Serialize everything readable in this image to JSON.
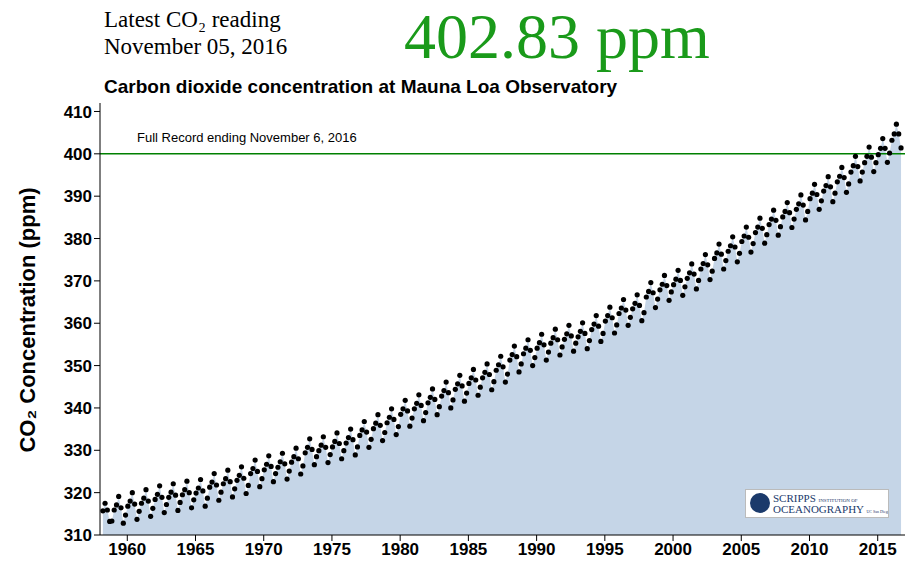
{
  "header": {
    "line1": "Latest CO₂ reading",
    "line2": "November 05, 2016",
    "reading": "402.83 ppm",
    "reading_color": "#1a9a1a"
  },
  "logo": {
    "line1": "SCRIPPS",
    "line2": "INSTITUTION OF",
    "line3": "OCEANOGRAPHY",
    "line4": "UC San Diego"
  },
  "chart_data": {
    "type": "scatter",
    "title": "Carbon dioxide concentration at Mauna Loa Observatory",
    "y_label": "CO₂ Concentration (ppm)",
    "xlim": [
      1958,
      2017
    ],
    "xticks": [
      1960,
      1965,
      1970,
      1975,
      1980,
      1985,
      1990,
      1995,
      2000,
      2005,
      2010,
      2015
    ],
    "ylim": [
      310,
      412
    ],
    "yticks": [
      310,
      320,
      330,
      340,
      350,
      360,
      370,
      380,
      390,
      400,
      410
    ],
    "reference_line": {
      "y": 400,
      "label": "Full Record ending November 6, 2016",
      "color": "#008000"
    },
    "marker": "circle",
    "x": [
      1958.21,
      1958.37,
      1958.54,
      1958.71,
      1958.87,
      1959.04,
      1959.21,
      1959.37,
      1959.54,
      1959.71,
      1959.87,
      1960.04,
      1960.21,
      1960.37,
      1960.54,
      1960.71,
      1960.87,
      1961.04,
      1961.21,
      1961.37,
      1961.54,
      1961.71,
      1961.87,
      1962.04,
      1962.21,
      1962.37,
      1962.54,
      1962.71,
      1962.87,
      1963.04,
      1963.21,
      1963.37,
      1963.54,
      1963.71,
      1963.87,
      1964.04,
      1964.21,
      1964.37,
      1964.54,
      1964.71,
      1964.87,
      1965.04,
      1965.21,
      1965.37,
      1965.54,
      1965.71,
      1965.87,
      1966.04,
      1966.21,
      1966.37,
      1966.54,
      1966.71,
      1966.87,
      1967.04,
      1967.21,
      1967.37,
      1967.54,
      1967.71,
      1967.87,
      1968.04,
      1968.21,
      1968.37,
      1968.54,
      1968.71,
      1968.87,
      1969.04,
      1969.21,
      1969.37,
      1969.54,
      1969.71,
      1969.87,
      1970.04,
      1970.21,
      1970.37,
      1970.54,
      1970.71,
      1970.87,
      1971.04,
      1971.21,
      1971.37,
      1971.54,
      1971.71,
      1971.87,
      1972.04,
      1972.21,
      1972.37,
      1972.54,
      1972.71,
      1972.87,
      1973.04,
      1973.21,
      1973.37,
      1973.54,
      1973.71,
      1973.87,
      1974.04,
      1974.21,
      1974.37,
      1974.54,
      1974.71,
      1974.87,
      1975.04,
      1975.21,
      1975.37,
      1975.54,
      1975.71,
      1975.87,
      1976.04,
      1976.21,
      1976.37,
      1976.54,
      1976.71,
      1976.87,
      1977.04,
      1977.21,
      1977.37,
      1977.54,
      1977.71,
      1977.87,
      1978.04,
      1978.21,
      1978.37,
      1978.54,
      1978.71,
      1978.87,
      1979.04,
      1979.21,
      1979.37,
      1979.54,
      1979.71,
      1979.87,
      1980.04,
      1980.21,
      1980.37,
      1980.54,
      1980.71,
      1980.87,
      1981.04,
      1981.21,
      1981.37,
      1981.54,
      1981.71,
      1981.87,
      1982.04,
      1982.21,
      1982.37,
      1982.54,
      1982.71,
      1982.87,
      1983.04,
      1983.21,
      1983.37,
      1983.54,
      1983.71,
      1983.87,
      1984.04,
      1984.21,
      1984.37,
      1984.54,
      1984.71,
      1984.87,
      1985.04,
      1985.21,
      1985.37,
      1985.54,
      1985.71,
      1985.87,
      1986.04,
      1986.21,
      1986.37,
      1986.54,
      1986.71,
      1986.87,
      1987.04,
      1987.21,
      1987.37,
      1987.54,
      1987.71,
      1987.87,
      1988.04,
      1988.21,
      1988.37,
      1988.54,
      1988.71,
      1988.87,
      1989.04,
      1989.21,
      1989.37,
      1989.54,
      1989.71,
      1989.87,
      1990.04,
      1990.21,
      1990.37,
      1990.54,
      1990.71,
      1990.87,
      1991.04,
      1991.21,
      1991.37,
      1991.54,
      1991.71,
      1991.87,
      1992.04,
      1992.21,
      1992.37,
      1992.54,
      1992.71,
      1992.87,
      1993.04,
      1993.21,
      1993.37,
      1993.54,
      1993.71,
      1993.87,
      1994.04,
      1994.21,
      1994.37,
      1994.54,
      1994.71,
      1994.87,
      1995.04,
      1995.21,
      1995.37,
      1995.54,
      1995.71,
      1995.87,
      1996.04,
      1996.21,
      1996.37,
      1996.54,
      1996.71,
      1996.87,
      1997.04,
      1997.21,
      1997.37,
      1997.54,
      1997.71,
      1997.87,
      1998.04,
      1998.21,
      1998.37,
      1998.54,
      1998.71,
      1998.87,
      1999.04,
      1999.21,
      1999.37,
      1999.54,
      1999.71,
      1999.87,
      2000.04,
      2000.21,
      2000.37,
      2000.54,
      2000.71,
      2000.87,
      2001.04,
      2001.21,
      2001.37,
      2001.54,
      2001.71,
      2001.87,
      2002.04,
      2002.21,
      2002.37,
      2002.54,
      2002.71,
      2002.87,
      2003.04,
      2003.21,
      2003.37,
      2003.54,
      2003.71,
      2003.87,
      2004.04,
      2004.21,
      2004.37,
      2004.54,
      2004.71,
      2004.87,
      2005.04,
      2005.21,
      2005.37,
      2005.54,
      2005.71,
      2005.87,
      2006.04,
      2006.21,
      2006.37,
      2006.54,
      2006.71,
      2006.87,
      2007.04,
      2007.21,
      2007.37,
      2007.54,
      2007.71,
      2007.87,
      2008.04,
      2008.21,
      2008.37,
      2008.54,
      2008.71,
      2008.87,
      2009.04,
      2009.21,
      2009.37,
      2009.54,
      2009.71,
      2009.87,
      2010.04,
      2010.21,
      2010.37,
      2010.54,
      2010.71,
      2010.87,
      2011.04,
      2011.21,
      2011.37,
      2011.54,
      2011.71,
      2011.87,
      2012.04,
      2012.21,
      2012.37,
      2012.54,
      2012.71,
      2012.87,
      2013.04,
      2013.21,
      2013.37,
      2013.54,
      2013.71,
      2013.87,
      2014.04,
      2014.21,
      2014.37,
      2014.54,
      2014.71,
      2014.87,
      2015.04,
      2015.21,
      2015.37,
      2015.54,
      2015.71,
      2015.87,
      2016.04,
      2016.21,
      2016.37,
      2016.54,
      2016.71
    ],
    "series": [
      {
        "color": "#000000",
        "values": [
          315.7,
          317.5,
          315.9,
          313.2,
          313.3,
          315.9,
          317.1,
          319.1,
          316.4,
          312.8,
          314.7,
          316.8,
          318.0,
          320.0,
          317.3,
          313.7,
          315.6,
          317.5,
          318.7,
          320.7,
          318.0,
          314.4,
          316.3,
          318.4,
          319.6,
          321.6,
          318.9,
          315.3,
          317.2,
          318.9,
          320.1,
          322.1,
          319.4,
          315.8,
          317.7,
          319.5,
          320.7,
          322.7,
          320.0,
          316.4,
          318.3,
          319.9,
          321.1,
          323.1,
          320.4,
          316.8,
          318.7,
          321.3,
          322.5,
          324.5,
          321.8,
          318.2,
          320.1,
          322.1,
          323.3,
          325.3,
          322.6,
          319.0,
          320.9,
          322.9,
          324.1,
          326.1,
          323.4,
          319.8,
          321.7,
          324.5,
          325.7,
          327.7,
          325.0,
          321.4,
          323.3,
          325.4,
          326.7,
          328.7,
          326.2,
          322.6,
          324.5,
          326.0,
          327.3,
          329.3,
          326.8,
          323.2,
          325.1,
          327.2,
          328.5,
          330.5,
          328.0,
          324.4,
          326.3,
          329.4,
          330.7,
          332.7,
          330.2,
          326.6,
          328.5,
          329.9,
          331.2,
          333.2,
          330.7,
          327.1,
          329.0,
          330.8,
          332.1,
          334.1,
          331.6,
          328.0,
          329.9,
          331.7,
          333.0,
          335.0,
          332.5,
          328.9,
          330.8,
          333.5,
          334.8,
          336.8,
          334.3,
          330.7,
          332.6,
          335.1,
          336.4,
          338.4,
          335.9,
          332.3,
          334.2,
          336.5,
          337.8,
          339.8,
          337.3,
          333.7,
          335.6,
          338.5,
          339.8,
          341.8,
          339.3,
          335.7,
          337.6,
          339.8,
          341.1,
          343.1,
          340.6,
          337.0,
          338.9,
          341.2,
          342.5,
          344.5,
          342.0,
          338.4,
          340.3,
          342.8,
          344.1,
          346.1,
          343.6,
          340.0,
          341.9,
          344.4,
          345.7,
          347.7,
          345.2,
          341.6,
          343.5,
          345.8,
          347.1,
          349.1,
          346.6,
          343.0,
          344.9,
          347.1,
          348.4,
          350.4,
          347.9,
          344.3,
          346.2,
          348.9,
          350.2,
          352.2,
          349.7,
          346.1,
          348.0,
          351.3,
          352.6,
          354.6,
          352.1,
          348.5,
          350.4,
          352.8,
          354.1,
          356.1,
          353.6,
          350.0,
          351.9,
          354.1,
          355.4,
          357.4,
          354.9,
          351.3,
          353.2,
          355.3,
          356.6,
          358.6,
          356.1,
          352.5,
          354.4,
          356.2,
          357.5,
          359.5,
          357.0,
          353.4,
          355.3,
          356.8,
          358.1,
          360.1,
          357.6,
          354.0,
          355.9,
          358.5,
          359.8,
          361.8,
          359.3,
          355.7,
          357.6,
          360.5,
          361.8,
          363.8,
          361.3,
          357.7,
          359.6,
          362.3,
          363.6,
          365.6,
          363.1,
          359.5,
          361.4,
          363.4,
          364.7,
          366.7,
          364.2,
          360.6,
          362.5,
          366.2,
          367.5,
          369.6,
          367.2,
          363.7,
          365.7,
          367.9,
          369.2,
          371.3,
          368.9,
          365.4,
          367.4,
          369.1,
          370.4,
          372.5,
          370.1,
          366.6,
          368.6,
          370.6,
          371.9,
          374.0,
          371.6,
          368.1,
          370.1,
          372.8,
          374.1,
          376.2,
          373.8,
          370.3,
          372.3,
          375.3,
          376.6,
          378.7,
          376.3,
          372.8,
          374.8,
          377.0,
          378.3,
          380.4,
          378.0,
          374.5,
          376.5,
          379.3,
          380.6,
          382.7,
          380.3,
          376.8,
          378.8,
          381.4,
          382.7,
          384.8,
          382.4,
          378.9,
          380.9,
          383.3,
          384.6,
          386.7,
          384.3,
          380.8,
          382.8,
          385.1,
          386.4,
          388.5,
          386.1,
          382.6,
          384.6,
          386.9,
          388.2,
          390.3,
          387.9,
          384.4,
          386.4,
          389.4,
          390.7,
          392.8,
          390.4,
          386.9,
          388.9,
          391.2,
          392.5,
          394.6,
          392.2,
          388.7,
          390.7,
          393.4,
          394.7,
          396.8,
          394.4,
          390.9,
          392.9,
          395.7,
          397.2,
          399.4,
          397.0,
          393.6,
          395.7,
          397.9,
          399.4,
          401.6,
          399.2,
          395.8,
          397.9,
          399.8,
          401.3,
          403.6,
          401.3,
          398.0,
          400.2,
          403.2,
          404.7,
          407.0,
          404.7,
          401.4
        ]
      }
    ]
  }
}
